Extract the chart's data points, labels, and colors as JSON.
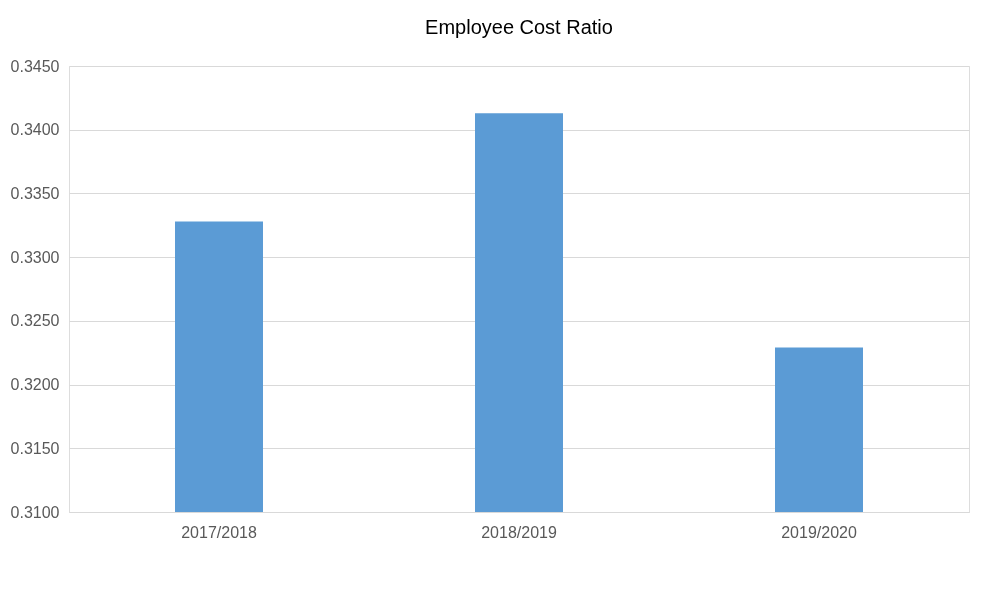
{
  "chart_data": {
    "type": "bar",
    "title": "Employee Cost Ratio",
    "categories": [
      "2017/2018",
      "2018/2019",
      "2019/2020"
    ],
    "values": [
      0.3328,
      0.3413,
      0.3229
    ],
    "color": "#5b9bd5",
    "ylim": [
      0.31,
      0.345
    ],
    "yticks": [
      {
        "value": 0.31,
        "label": "0.3100"
      },
      {
        "value": 0.315,
        "label": "0.3150"
      },
      {
        "value": 0.32,
        "label": "0.3200"
      },
      {
        "value": 0.325,
        "label": "0.3250"
      },
      {
        "value": 0.33,
        "label": "0.3300"
      },
      {
        "value": 0.335,
        "label": "0.3350"
      },
      {
        "value": 0.34,
        "label": "0.3400"
      },
      {
        "value": 0.345,
        "label": "0.3450"
      }
    ],
    "grid": "y"
  }
}
